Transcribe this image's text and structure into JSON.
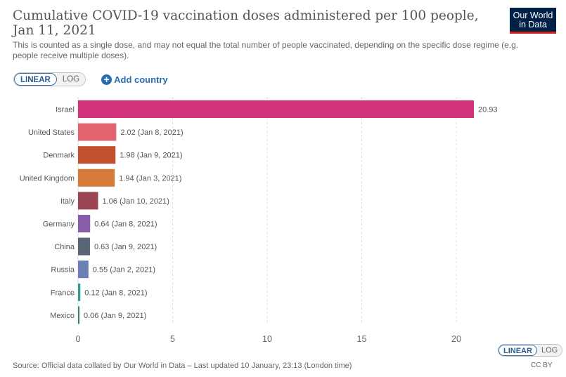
{
  "header": {
    "title": "Cumulative COVID-19 vaccination doses administered per 100 people, Jan 11, 2021",
    "subtitle": "This is counted as a single dose, and may not equal the total number of people vaccinated, depending on the specific dose regime (e.g. people receive multiple doses).",
    "logo_line1": "Our World",
    "logo_line2": "in Data"
  },
  "controls": {
    "linear_label": "LINEAR",
    "log_label": "LOG",
    "add_country_label": "Add country",
    "plus_icon": "+"
  },
  "chart_data": {
    "type": "bar",
    "orientation": "horizontal",
    "categories": [
      "Israel",
      "United States",
      "Denmark",
      "United Kingdom",
      "Italy",
      "Germany",
      "China",
      "Russia",
      "France",
      "Mexico"
    ],
    "values": [
      20.93,
      2.02,
      1.98,
      1.94,
      1.06,
      0.64,
      0.63,
      0.55,
      0.12,
      0.06
    ],
    "value_labels": [
      "20.93",
      "2.02 (Jan 8, 2021)",
      "1.98 (Jan 9, 2021)",
      "1.94 (Jan 3, 2021)",
      "1.06 (Jan 10, 2021)",
      "0.64 (Jan 8, 2021)",
      "0.63 (Jan 9, 2021)",
      "0.55 (Jan 2, 2021)",
      "0.12 (Jan 8, 2021)",
      "0.06 (Jan 9, 2021)"
    ],
    "colors": [
      "#d1327b",
      "#e0636f",
      "#c2502f",
      "#d67b3a",
      "#9c4654",
      "#8a5dab",
      "#5a6576",
      "#6b80b5",
      "#2f9d8f",
      "#3c7a7a"
    ],
    "xticks": [
      0,
      5,
      10,
      15,
      20
    ],
    "xlim": [
      0,
      21.5
    ],
    "grid": "vertical dashed"
  },
  "footer": {
    "source": "Source: Official data collated by Our World in Data – Last updated 10 January, 23:13 (London time)",
    "linear_label": "LINEAR",
    "log_label": "LOG",
    "license": "CC BY"
  }
}
